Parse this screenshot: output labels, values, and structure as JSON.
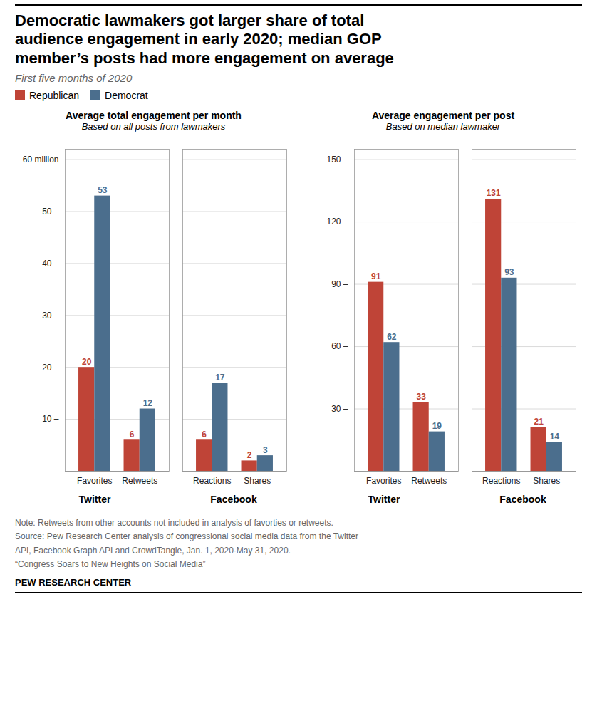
{
  "title": "Democratic lawmakers got larger share of total\naudience engagement in early 2020; median GOP\nmember’s posts had more engagement on average",
  "subtitle": "First five months of 2020",
  "annotations": [
    "Note: Retweets from other accounts not included in analysis of favorties or retweets.\nSource: Pew Research Center analysis of congressional social media data from the Twitter\nAPI, Facebook Graph API and CrowdTangle, Jan. 1, 2020-May 31, 2020.\n“Congress Soars to New Heights on Social Media”",
    "PEW RESEARCH CENTER"
  ],
  "chart_data": [
    {
      "type": "bar",
      "title": "Average total engagement per month",
      "subtitle": "Based on all posts from lawmakers",
      "xlabel": "Twitter",
      "categories": [
        "Favorites",
        "Retweets"
      ],
      "series": [
        {
          "name": "Republican",
          "color": "#bf4437",
          "values": [
            20,
            6
          ]
        },
        {
          "name": "Democrat",
          "color": "#4b6e8d",
          "values": [
            53,
            12
          ]
        }
      ],
      "ylim": [
        0,
        62
      ],
      "yticks": [
        {
          "value": 10,
          "label": "10 –"
        },
        {
          "value": 20,
          "label": "20 –"
        },
        {
          "value": 30,
          "label": "30 –"
        },
        {
          "value": 40,
          "label": "40 –"
        },
        {
          "value": 50,
          "label": "50 –"
        },
        {
          "value": 60,
          "label": "60 million"
        }
      ],
      "grid": true,
      "data_labels": true
    },
    {
      "type": "bar",
      "xlabel": "Facebook",
      "categories": [
        "Reactions",
        "Shares"
      ],
      "series": [
        {
          "name": "Republican",
          "color": "#bf4437",
          "values": [
            6,
            2
          ]
        },
        {
          "name": "Democrat",
          "color": "#4b6e8d",
          "values": [
            17,
            3
          ]
        }
      ],
      "ylim": [
        0,
        62
      ],
      "yticks": [
        10,
        20,
        30,
        40,
        50,
        60
      ],
      "grid": true,
      "data_labels": true,
      "tick_labels": "x"
    },
    {
      "type": "bar",
      "title": "Average engagement per post",
      "subtitle": "Based on median lawmaker",
      "xlabel": "Twitter",
      "categories": [
        "Favorites",
        "Retweets"
      ],
      "series": [
        {
          "name": "Republican",
          "color": "#bf4437",
          "values": [
            91,
            33
          ]
        },
        {
          "name": "Democrat",
          "color": "#4b6e8d",
          "values": [
            62,
            19
          ]
        }
      ],
      "ylim": [
        0,
        155
      ],
      "yticks": [
        {
          "value": 30,
          "label": "30 –"
        },
        {
          "value": 60,
          "label": "60 –"
        },
        {
          "value": 90,
          "label": "90 –"
        },
        {
          "value": 120,
          "label": "120 –"
        },
        {
          "value": 150,
          "label": "150 –"
        }
      ],
      "grid": true,
      "data_labels": true
    },
    {
      "type": "bar",
      "xlabel": "Facebook",
      "categories": [
        "Reactions",
        "Shares"
      ],
      "series": [
        {
          "name": "Republican",
          "color": "#bf4437",
          "values": [
            131,
            21
          ]
        },
        {
          "name": "Democrat",
          "color": "#4b6e8d",
          "values": [
            93,
            14
          ]
        }
      ],
      "ylim": [
        0,
        155
      ],
      "yticks": [
        30,
        60,
        90,
        120,
        150
      ],
      "grid": true,
      "data_labels": true,
      "tick_labels": "x"
    }
  ]
}
